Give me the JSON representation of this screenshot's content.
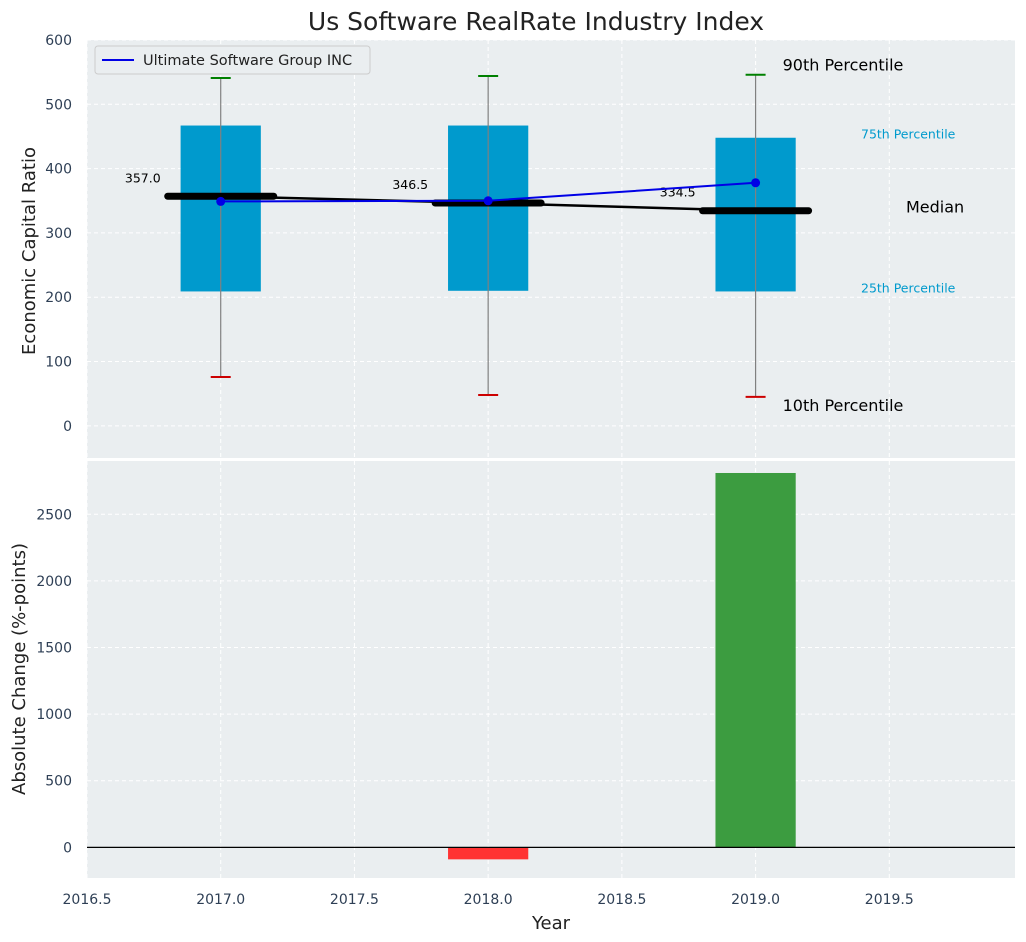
{
  "chart_data": {
    "title": "Us Software RealRate Industry Index",
    "colors": {
      "box": "#009acd",
      "company": "#0000e6",
      "median": "#000000",
      "p90": "#008000",
      "p10": "#cc0000",
      "whisker": "#808080",
      "increase": "#3c9c40",
      "decrease": "#ff3333",
      "panel_bg": "#eaeef0",
      "grid": "#ffffff"
    },
    "top": {
      "type": "box",
      "ylabel": "Economic Capital Ratio",
      "ylim": [
        -50,
        600
      ],
      "yticks": [
        0,
        100,
        200,
        300,
        400,
        500,
        600
      ],
      "legend": {
        "label": "Ultimate Software Group INC",
        "position": "top-left"
      },
      "years": [
        2017,
        2018,
        2019
      ],
      "p10": [
        76,
        48,
        45
      ],
      "p25": [
        209,
        210,
        209
      ],
      "median": [
        357.0,
        346.5,
        334.5
      ],
      "median_labels": [
        "357.0",
        "346.5",
        "334.5"
      ],
      "p75": [
        467,
        467,
        448
      ],
      "p90": [
        541,
        544,
        546
      ],
      "company": [
        349,
        350,
        378
      ],
      "annotations": {
        "p90": "90th Percentile",
        "p75": "75th Percentile",
        "median": "Median",
        "p25": "25th Percentile",
        "p10": "10th Percentile"
      }
    },
    "bottom": {
      "type": "bar",
      "ylabel": "Absolute Change (%-points)",
      "xlabel": "Year",
      "ylim": [
        -230,
        2900
      ],
      "yticks": [
        0,
        500,
        1000,
        1500,
        2000,
        2500
      ],
      "years": [
        2018,
        2019
      ],
      "values": [
        -90,
        2810
      ]
    },
    "xaxis": {
      "xlim": [
        2016.5,
        2019.97
      ],
      "ticks": [
        2016.5,
        2017.0,
        2017.5,
        2018.0,
        2018.5,
        2019.0,
        2019.5
      ],
      "tick_labels": [
        "2016.5",
        "2017.0",
        "2017.5",
        "2018.0",
        "2018.5",
        "2019.0",
        "2019.5"
      ]
    }
  }
}
